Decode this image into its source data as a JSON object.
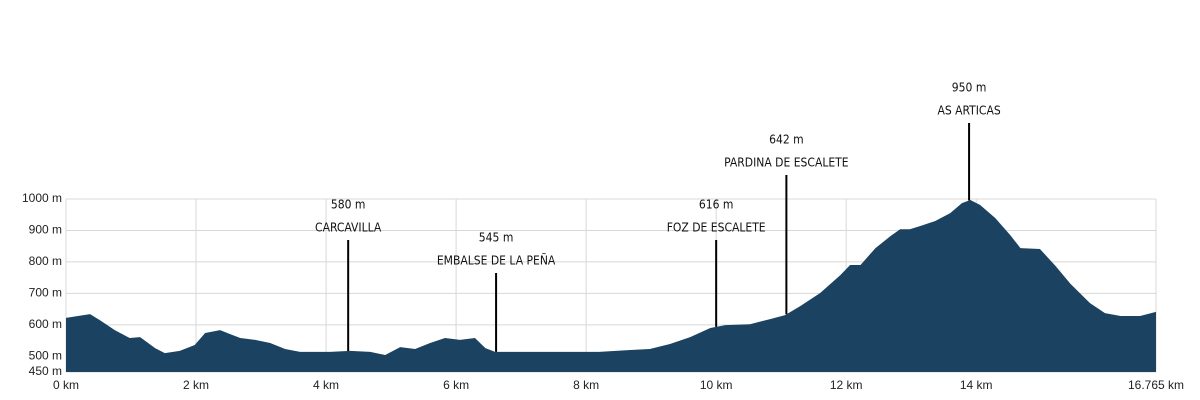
{
  "chart_data": {
    "type": "area",
    "x": [
      0,
      0.37,
      0.52,
      0.75,
      0.98,
      1.14,
      1.37,
      1.52,
      1.75,
      1.98,
      2.14,
      2.37,
      2.52,
      2.68,
      2.91,
      3.14,
      3.37,
      3.6,
      3.83,
      4.06,
      4.37,
      4.68,
      4.91,
      5.14,
      5.37,
      5.6,
      5.83,
      6.06,
      6.29,
      6.45,
      6.6,
      7.0,
      7.6,
      8.2,
      8.68,
      8.98,
      9.29,
      9.6,
      9.91,
      10.14,
      10.52,
      10.83,
      11.06,
      11.29,
      11.6,
      11.91,
      12.06,
      12.22,
      12.45,
      12.68,
      12.83,
      12.98,
      13.14,
      13.37,
      13.6,
      13.78,
      13.91,
      14.06,
      14.29,
      14.52,
      14.68,
      14.98,
      15.22,
      15.45,
      15.75,
      15.98,
      16.22,
      16.52,
      16.765
    ],
    "values": [
      622,
      634,
      615,
      583,
      558,
      561,
      526,
      510,
      517,
      536,
      574,
      583,
      571,
      558,
      552,
      542,
      523,
      514,
      514,
      514,
      517,
      514,
      504,
      529,
      523,
      542,
      558,
      552,
      558,
      526,
      514,
      514,
      514,
      514,
      520,
      523,
      539,
      561,
      590,
      599,
      602,
      618,
      631,
      659,
      701,
      758,
      790,
      790,
      844,
      882,
      904,
      904,
      914,
      930,
      955,
      987,
      997,
      981,
      940,
      886,
      844,
      841,
      787,
      730,
      669,
      637,
      628,
      628,
      641
    ],
    "color": "#1b4260",
    "xlim": [
      0,
      16.765
    ],
    "xticks": [
      {
        "value": 0,
        "label": "0 km"
      },
      {
        "value": 2,
        "label": "2 km"
      },
      {
        "value": 4,
        "label": "4 km"
      },
      {
        "value": 6,
        "label": "6 km"
      },
      {
        "value": 8,
        "label": "8 km"
      },
      {
        "value": 10,
        "label": "10 km"
      },
      {
        "value": 12,
        "label": "12 km"
      },
      {
        "value": 14,
        "label": "14 km"
      },
      {
        "value": 16.765,
        "label": "16.765 km"
      }
    ],
    "ylim": [
      450,
      1000
    ],
    "yticks": [
      {
        "value": 450,
        "label": "450 m"
      },
      {
        "value": 500,
        "label": "500 m"
      },
      {
        "value": 600,
        "label": "600 m"
      },
      {
        "value": 700,
        "label": "700 m"
      },
      {
        "value": 800,
        "label": "800 m"
      },
      {
        "value": 900,
        "label": "900 m"
      },
      {
        "value": 1000,
        "label": "1000 m"
      }
    ],
    "grid": true,
    "annotations": [
      {
        "x": 4.34,
        "elevation": "580 m",
        "name": "CARCAVILLA"
      },
      {
        "x": 6.615,
        "elevation": "545 m",
        "name": "EMBALSE DE LA PEÑA"
      },
      {
        "x": 10.0,
        "elevation": "616 m",
        "name": "FOZ DE ESCALETE"
      },
      {
        "x": 11.08,
        "elevation": "642 m",
        "name": "PARDINA DE ESCALETE"
      },
      {
        "x": 13.89,
        "elevation": "950 m",
        "name": "AS ARTICAS"
      }
    ]
  }
}
